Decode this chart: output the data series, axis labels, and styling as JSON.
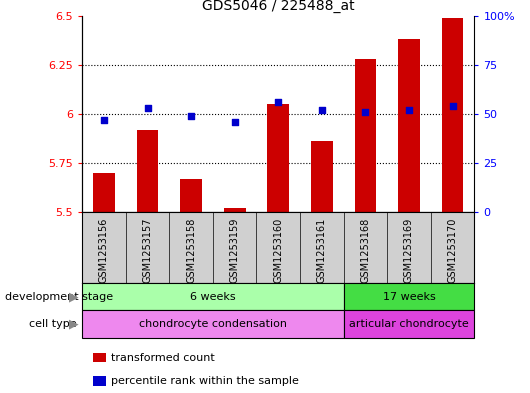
{
  "title": "GDS5046 / 225488_at",
  "samples": [
    "GSM1253156",
    "GSM1253157",
    "GSM1253158",
    "GSM1253159",
    "GSM1253160",
    "GSM1253161",
    "GSM1253168",
    "GSM1253169",
    "GSM1253170"
  ],
  "transformed_count": [
    5.7,
    5.92,
    5.67,
    5.52,
    6.05,
    5.86,
    6.28,
    6.38,
    6.49
  ],
  "percentile_rank": [
    47,
    53,
    49,
    46,
    56,
    52,
    51,
    52,
    54
  ],
  "ylim_left": [
    5.5,
    6.5
  ],
  "ylim_right": [
    0,
    100
  ],
  "yticks_left": [
    5.5,
    5.75,
    6.0,
    6.25,
    6.5
  ],
  "yticks_right": [
    0,
    25,
    50,
    75,
    100
  ],
  "ytick_labels_left": [
    "5.5",
    "5.75",
    "6",
    "6.25",
    "6.5"
  ],
  "ytick_labels_right": [
    "0",
    "25",
    "50",
    "75",
    "100%"
  ],
  "bar_color": "#cc0000",
  "dot_color": "#0000cc",
  "dev_stage_label": "development stage",
  "cell_type_label": "cell type",
  "dev_stages": [
    {
      "label": "6 weeks",
      "start": 0,
      "end": 5,
      "color": "#aaffaa"
    },
    {
      "label": "17 weeks",
      "start": 6,
      "end": 8,
      "color": "#44dd44"
    }
  ],
  "cell_types": [
    {
      "label": "chondrocyte condensation",
      "start": 0,
      "end": 5,
      "color": "#ee88ee"
    },
    {
      "label": "articular chondrocyte",
      "start": 6,
      "end": 8,
      "color": "#dd44dd"
    }
  ],
  "legend_items": [
    {
      "label": "transformed count",
      "color": "#cc0000"
    },
    {
      "label": "percentile rank within the sample",
      "color": "#0000cc"
    }
  ],
  "bar_bottom": 5.5,
  "sample_bg": "#d0d0d0",
  "grid_dotted_at": [
    5.75,
    6.0,
    6.25
  ]
}
